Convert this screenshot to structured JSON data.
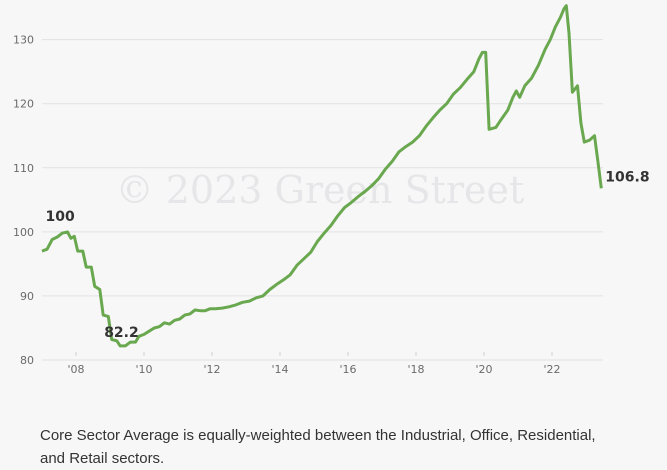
{
  "chart_data": {
    "type": "line",
    "watermark": "© 2023 Green Street",
    "x_ticks": [
      "'08",
      "'10",
      "'12",
      "'14",
      "'16",
      "'18",
      "'20",
      "'22"
    ],
    "y_ticks": [
      80,
      90,
      100,
      110,
      120,
      130
    ],
    "xlim": [
      2007.0,
      2023.5
    ],
    "ylim": [
      80,
      134
    ],
    "grid": "horizontal",
    "series": [
      {
        "color": "#6aa84f",
        "points": [
          [
            2007.0,
            97.0
          ],
          [
            2007.15,
            97.3
          ],
          [
            2007.3,
            98.8
          ],
          [
            2007.45,
            99.2
          ],
          [
            2007.6,
            99.8
          ],
          [
            2007.75,
            100.0
          ],
          [
            2007.85,
            99.0
          ],
          [
            2007.95,
            99.3
          ],
          [
            2008.05,
            97.0
          ],
          [
            2008.2,
            97.0
          ],
          [
            2008.3,
            94.5
          ],
          [
            2008.45,
            94.5
          ],
          [
            2008.55,
            91.5
          ],
          [
            2008.7,
            91.0
          ],
          [
            2008.8,
            87.0
          ],
          [
            2008.95,
            86.8
          ],
          [
            2009.05,
            83.2
          ],
          [
            2009.2,
            83.0
          ],
          [
            2009.3,
            82.2
          ],
          [
            2009.45,
            82.2
          ],
          [
            2009.6,
            82.8
          ],
          [
            2009.75,
            82.8
          ],
          [
            2009.85,
            83.7
          ],
          [
            2010.0,
            84.0
          ],
          [
            2010.15,
            84.5
          ],
          [
            2010.3,
            85.0
          ],
          [
            2010.45,
            85.2
          ],
          [
            2010.6,
            85.8
          ],
          [
            2010.75,
            85.6
          ],
          [
            2010.9,
            86.2
          ],
          [
            2011.05,
            86.4
          ],
          [
            2011.2,
            87.0
          ],
          [
            2011.35,
            87.2
          ],
          [
            2011.5,
            87.8
          ],
          [
            2011.65,
            87.7
          ],
          [
            2011.8,
            87.7
          ],
          [
            2011.95,
            88.0
          ],
          [
            2012.1,
            88.0
          ],
          [
            2012.3,
            88.1
          ],
          [
            2012.5,
            88.3
          ],
          [
            2012.7,
            88.6
          ],
          [
            2012.9,
            89.0
          ],
          [
            2013.1,
            89.2
          ],
          [
            2013.3,
            89.7
          ],
          [
            2013.5,
            90.0
          ],
          [
            2013.7,
            91.0
          ],
          [
            2013.9,
            91.8
          ],
          [
            2014.1,
            92.5
          ],
          [
            2014.3,
            93.3
          ],
          [
            2014.5,
            94.8
          ],
          [
            2014.7,
            95.8
          ],
          [
            2014.9,
            96.8
          ],
          [
            2015.1,
            98.5
          ],
          [
            2015.3,
            99.8
          ],
          [
            2015.5,
            101.0
          ],
          [
            2015.7,
            102.5
          ],
          [
            2015.9,
            103.8
          ],
          [
            2016.1,
            104.6
          ],
          [
            2016.3,
            105.5
          ],
          [
            2016.5,
            106.3
          ],
          [
            2016.7,
            107.2
          ],
          [
            2016.9,
            108.3
          ],
          [
            2017.1,
            109.8
          ],
          [
            2017.3,
            111.0
          ],
          [
            2017.5,
            112.5
          ],
          [
            2017.7,
            113.3
          ],
          [
            2017.9,
            114.0
          ],
          [
            2018.1,
            115.0
          ],
          [
            2018.3,
            116.5
          ],
          [
            2018.5,
            117.8
          ],
          [
            2018.7,
            119.0
          ],
          [
            2018.9,
            120.0
          ],
          [
            2019.1,
            121.5
          ],
          [
            2019.3,
            122.5
          ],
          [
            2019.5,
            123.8
          ],
          [
            2019.7,
            125.0
          ],
          [
            2019.85,
            127.0
          ],
          [
            2019.95,
            128.0
          ],
          [
            2020.05,
            128.0
          ],
          [
            2020.15,
            116.0
          ],
          [
            2020.35,
            116.3
          ],
          [
            2020.5,
            117.5
          ],
          [
            2020.7,
            119.0
          ],
          [
            2020.85,
            121.0
          ],
          [
            2020.95,
            122.0
          ],
          [
            2021.05,
            121.0
          ],
          [
            2021.2,
            122.8
          ],
          [
            2021.4,
            124.0
          ],
          [
            2021.6,
            126.0
          ],
          [
            2021.8,
            128.5
          ],
          [
            2021.95,
            130.0
          ],
          [
            2022.1,
            132.0
          ],
          [
            2022.25,
            133.5
          ],
          [
            2022.35,
            134.8
          ],
          [
            2022.42,
            135.3
          ],
          [
            2022.5,
            131.0
          ],
          [
            2022.6,
            121.8
          ],
          [
            2022.75,
            122.8
          ],
          [
            2022.85,
            117.0
          ],
          [
            2022.95,
            114.0
          ],
          [
            2023.1,
            114.3
          ],
          [
            2023.25,
            115.0
          ],
          [
            2023.35,
            111.0
          ],
          [
            2023.45,
            106.8
          ]
        ]
      }
    ],
    "annotations": [
      {
        "text": "100",
        "x": 2007.75,
        "y": 100.0
      },
      {
        "text": "82.2",
        "x": 2009.3,
        "y": 82.2
      },
      {
        "text": "106.8",
        "x": 2023.45,
        "y": 106.8
      }
    ]
  },
  "footnote": "Core Sector Average is equally-weighted between the Industrial, Office, Residential, and Retail sectors."
}
